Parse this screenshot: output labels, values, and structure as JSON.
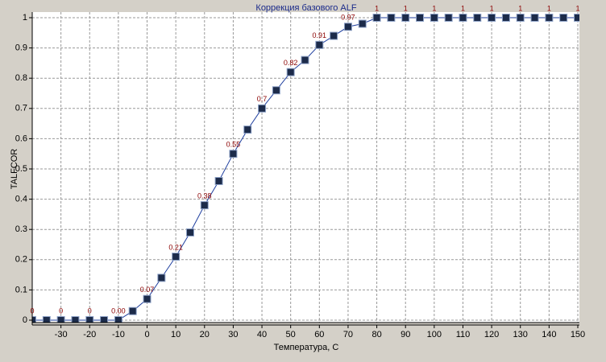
{
  "chart_data": {
    "type": "line",
    "title": "Коррекция базового ALF",
    "x_label": "Температура, C",
    "y_label": "TALFCOR",
    "x": [
      -40,
      -35,
      -30,
      -25,
      -20,
      -15,
      -10,
      -5,
      0,
      5,
      10,
      15,
      20,
      25,
      30,
      35,
      40,
      45,
      50,
      55,
      60,
      65,
      70,
      75,
      80,
      85,
      90,
      95,
      100,
      105,
      110,
      115,
      120,
      125,
      130,
      135,
      140,
      145,
      150
    ],
    "series": [
      {
        "name": "TALFCOR",
        "color": "#1f3f9f",
        "values": [
          0,
          0,
          0,
          0,
          0,
          0,
          0,
          0.03,
          0.07,
          0.14,
          0.21,
          0.29,
          0.38,
          0.46,
          0.55,
          0.63,
          0.7,
          0.76,
          0.82,
          0.86,
          0.91,
          0.94,
          0.97,
          0.98,
          1,
          1,
          1,
          1,
          1,
          1,
          1,
          1,
          1,
          1,
          1,
          1,
          1,
          1,
          1
        ],
        "value_labels": [
          "0",
          null,
          "0",
          null,
          "0",
          null,
          "0.00",
          null,
          "0.07",
          null,
          "0.21",
          null,
          "0.38",
          null,
          "0.55",
          null,
          "0.7",
          null,
          "0.82",
          null,
          "0.91",
          null,
          "0.97",
          null,
          "1",
          null,
          "1",
          null,
          "1",
          null,
          "1",
          null,
          "1",
          null,
          "1",
          null,
          "1",
          null,
          "1"
        ]
      }
    ],
    "xlim": [
      -40,
      150
    ],
    "xticks": [
      -30,
      -20,
      -10,
      0,
      10,
      20,
      30,
      40,
      50,
      60,
      70,
      80,
      90,
      100,
      110,
      120,
      130,
      140,
      150
    ],
    "ylim": [
      0,
      1
    ],
    "yticks": [
      0,
      0.1,
      0.2,
      0.3,
      0.4,
      0.5,
      0.6,
      0.7,
      0.8,
      0.9,
      1
    ],
    "grid": true
  }
}
